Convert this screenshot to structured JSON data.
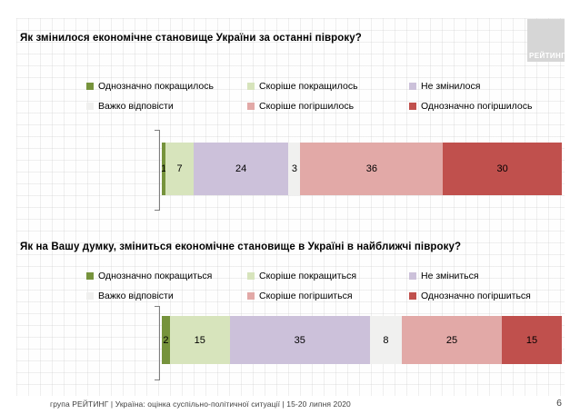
{
  "logo": {
    "text": "РЕЙТИНГ"
  },
  "footer": {
    "text": "група РЕЙТИНГ |  Україна: оцінка суспільно-політичної ситуації  | 15-20 липня 2020",
    "page": "6"
  },
  "colors": {
    "definitely_better": "#76933C",
    "rather_better": "#D7E4BC",
    "no_change": "#CCC1DA",
    "hard_to_say": "#F0F0EF",
    "rather_worse": "#E2A9A7",
    "definitely_worse": "#C0504D",
    "axis": "#7F7F7F",
    "logo_bg": "#D6D6D6"
  },
  "chart_data": [
    {
      "type": "bar",
      "stacked": true,
      "orientation": "horizontal",
      "title": "Як змінилося економічне становище України за останні півроку?",
      "legend_position": "top",
      "legend_columns": 3,
      "categories": [
        "Однозначно покращилось",
        "Скоріше покращилось",
        "Не змінилося",
        "Важко відповісти",
        "Скоріше погіршилось",
        "Однозначно погіршилось"
      ],
      "values": [
        1,
        7,
        24,
        3,
        36,
        30
      ],
      "segments": [
        {
          "label": "Однозначно покращилось",
          "value": 1,
          "color": "definitely_better"
        },
        {
          "label": "Скоріше покращилось",
          "value": 7,
          "color": "rather_better"
        },
        {
          "label": "Не змінилося",
          "value": 24,
          "color": "no_change"
        },
        {
          "label": "Важко відповісти",
          "value": 3,
          "color": "hard_to_say"
        },
        {
          "label": "Скоріше погіршилось",
          "value": 36,
          "color": "rather_worse"
        },
        {
          "label": "Однозначно погіршилось",
          "value": 30,
          "color": "definitely_worse"
        }
      ]
    },
    {
      "type": "bar",
      "stacked": true,
      "orientation": "horizontal",
      "title": "Як на Вашу думку, зміниться економічне становище в Україні в найближчі півроку?",
      "legend_position": "top",
      "legend_columns": 3,
      "categories": [
        "Однозначно покращиться",
        "Скоріше покращиться",
        "Не зміниться",
        "Важко відповісти",
        "Скоріше погіршиться",
        "Однозначно погіршиться"
      ],
      "values": [
        2,
        15,
        35,
        8,
        25,
        15
      ],
      "segments": [
        {
          "label": "Однозначно покращиться",
          "value": 2,
          "color": "definitely_better"
        },
        {
          "label": "Скоріше покращиться",
          "value": 15,
          "color": "rather_better"
        },
        {
          "label": "Не зміниться",
          "value": 35,
          "color": "no_change"
        },
        {
          "label": "Важко відповісти",
          "value": 8,
          "color": "hard_to_say"
        },
        {
          "label": "Скоріше погіршиться",
          "value": 25,
          "color": "rather_worse"
        },
        {
          "label": "Однозначно погіршиться",
          "value": 15,
          "color": "definitely_worse"
        }
      ]
    }
  ]
}
